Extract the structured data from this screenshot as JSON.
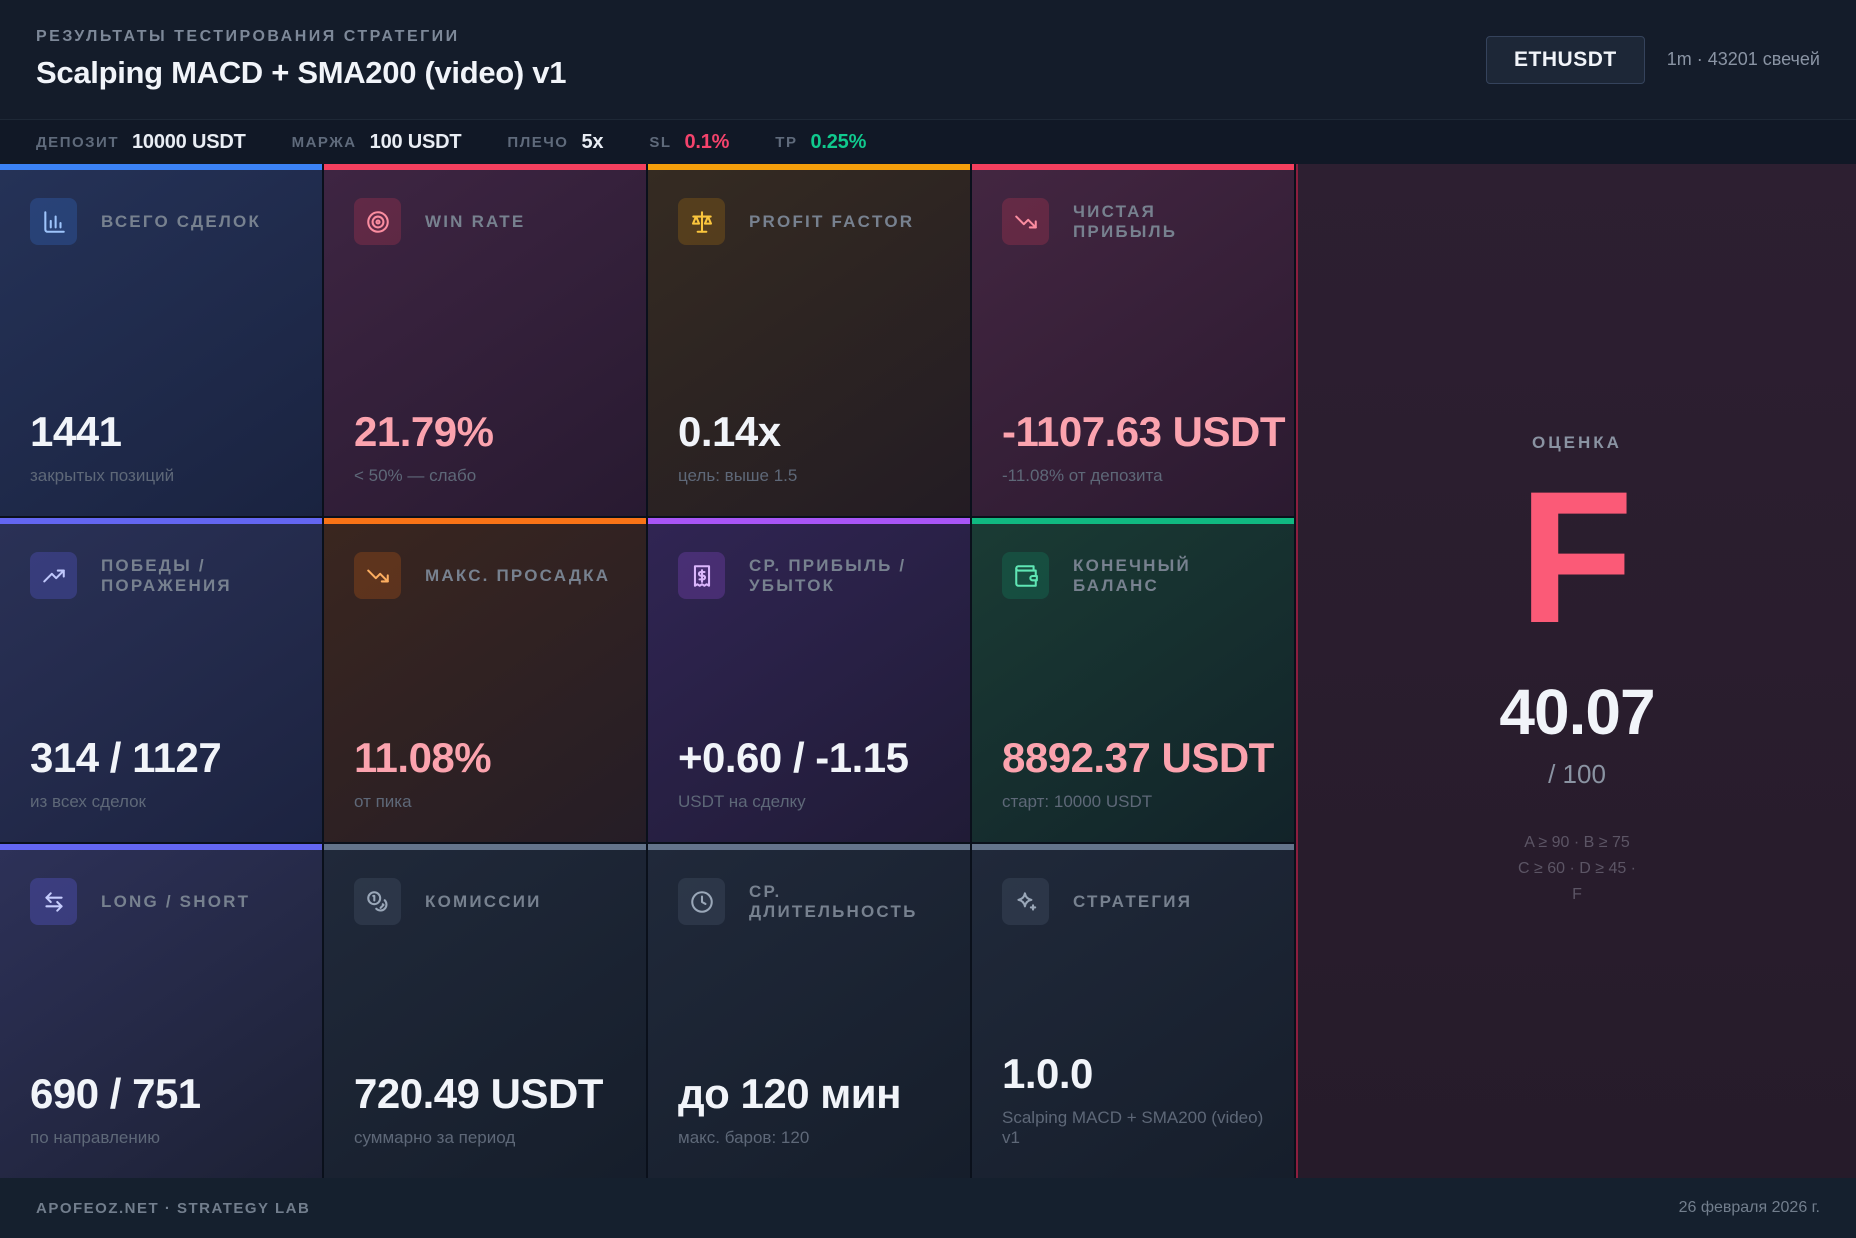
{
  "header": {
    "label": "РЕЗУЛЬТАТЫ ТЕСТИРОВАНИЯ СТРАТЕГИИ",
    "title": "Scalping MACD + SMA200 (video) v1",
    "symbol": "ETHUSDT",
    "timeframe": "1m · 43201 свечей"
  },
  "params": [
    {
      "label": "ДЕПОЗИТ",
      "value": "10000 USDT",
      "color": "#e9edf4"
    },
    {
      "label": "МАРЖА",
      "value": "100 USDT",
      "color": "#e9edf4"
    },
    {
      "label": "ПЛЕЧО",
      "value": "5x",
      "color": "#e9edf4"
    },
    {
      "label": "SL",
      "value": "0.1%",
      "color": "#f4436c"
    },
    {
      "label": "TP",
      "value": "0.25%",
      "color": "#10c98d"
    }
  ],
  "cards": [
    {
      "icon": "bar-chart-icon",
      "title": "ВСЕГО СДЕЛОК",
      "value": "1441",
      "sub": "закрытых позиций",
      "accent": "#3b82f6",
      "icon_bg": "rgba(59,130,246,0.22)",
      "icon_color": "#9dc4fb",
      "bg_from": "#253257",
      "bg_to": "#1a2340",
      "value_color": "#f1f4f9"
    },
    {
      "icon": "target-icon",
      "title": "WIN RATE",
      "value": "21.79%",
      "sub": "< 50% — слабо",
      "accent": "#f43f5e",
      "icon_bg": "rgba(244,63,94,0.20)",
      "icon_color": "#fb8da0",
      "bg_from": "#3e2542",
      "bg_to": "#281a31",
      "value_color": "#fba3ae"
    },
    {
      "icon": "scale-icon",
      "title": "PROFIT FACTOR",
      "value": "0.14x",
      "sub": "цель: выше 1.5",
      "accent": "#f59e0b",
      "icon_bg": "rgba(245,158,11,0.18)",
      "icon_color": "#fbc63d",
      "bg_from": "#352b22",
      "bg_to": "#231c23",
      "value_color": "#f1f4f9"
    },
    {
      "icon": "trending-down-icon",
      "title": "ЧИСТАЯ ПРИБЫЛЬ",
      "value": "-1107.63 USDT",
      "sub": "-11.08% от депозита",
      "accent": "#f43f5e",
      "icon_bg": "rgba(244,63,94,0.20)",
      "icon_color": "#fb8da0",
      "bg_from": "#432641",
      "bg_to": "#2b1a30",
      "value_color": "#fba3ae"
    },
    {
      "icon": "trending-up-icon",
      "title": "ПОБЕДЫ / ПОРАЖЕНИЯ",
      "value": "314 / 1127",
      "sub": "из всех сделок",
      "accent": "#6366f1",
      "icon_bg": "rgba(99,102,241,0.26)",
      "icon_color": "#c0c8fc",
      "bg_from": "#2a3156",
      "bg_to": "#1c2340",
      "value_color": "#f1f4f9"
    },
    {
      "icon": "trending-down-icon",
      "title": "МАКС. ПРОСАДКА",
      "value": "11.08%",
      "sub": "от пика",
      "accent": "#f97316",
      "icon_bg": "rgba(249,115,22,0.20)",
      "icon_color": "#fdae60",
      "bg_from": "#3a261f",
      "bg_to": "#251d26",
      "value_color": "#fba3ae"
    },
    {
      "icon": "receipt-dollar-icon",
      "title": "СР. ПРИБЫЛЬ / УБЫТОК",
      "value": "+0.60 / -1.15",
      "sub": "USDT на сделку",
      "accent": "#a855f7",
      "icon_bg": "rgba(168,85,247,0.22)",
      "icon_color": "#dbb6fc",
      "bg_from": "#302553",
      "bg_to": "#201b36",
      "value_color": "#f1f4f9"
    },
    {
      "icon": "wallet-icon",
      "title": "КОНЕЧНЫЙ БАЛАНС",
      "value": "8892.37 USDT",
      "sub": "старт: 10000 USDT",
      "accent": "#10b981",
      "icon_bg": "rgba(16,185,129,0.18)",
      "icon_color": "#5fe6b4",
      "bg_from": "#1a3b34",
      "bg_to": "#122329",
      "value_color": "#fba3ae"
    },
    {
      "icon": "swap-arrows-icon",
      "title": "LONG / SHORT",
      "value": "690 / 751",
      "sub": "по направлению",
      "accent": "#6366f1",
      "icon_bg": "rgba(99,102,241,0.28)",
      "icon_color": "#c6cdfd",
      "bg_from": "#2d3158",
      "bg_to": "#1d2135",
      "value_color": "#f1f4f9"
    },
    {
      "icon": "coins-icon",
      "title": "КОМИССИИ",
      "value": "720.49 USDT",
      "sub": "суммарно за период",
      "accent": "#64748b",
      "icon_bg": "rgba(100,116,139,0.20)",
      "icon_color": "#9aa7b8",
      "bg_from": "#20293a",
      "bg_to": "#161e2b",
      "value_color": "#f1f4f9"
    },
    {
      "icon": "clock-icon",
      "title": "СР. ДЛИТЕЛЬНОСТЬ",
      "value": "до 120 мин",
      "sub": "макс. баров: 120",
      "accent": "#64748b",
      "icon_bg": "rgba(100,116,139,0.20)",
      "icon_color": "#9aa7b8",
      "bg_from": "#20293a",
      "bg_to": "#161e2b",
      "value_color": "#f1f4f9"
    },
    {
      "icon": "sparkles-icon",
      "title": "СТРАТЕГИЯ",
      "value": "1.0.0",
      "sub": "Scalping MACD + SMA200 (video) v1",
      "accent": "#64748b",
      "icon_bg": "rgba(100,116,139,0.20)",
      "icon_color": "#9aa7b8",
      "bg_from": "#20293a",
      "bg_to": "#161e2b",
      "value_color": "#f1f4f9"
    }
  ],
  "rating": {
    "label": "ОЦЕНКА",
    "grade": "F",
    "grade_color": "#fb5a77",
    "score": "40.07",
    "denominator": "/ 100",
    "legend_lines": [
      "A ≥ 90 · B ≥ 75",
      "C ≥ 60 · D ≥ 45 ·",
      "F"
    ]
  },
  "footer": {
    "left": "APOFEOZ.NET · STRATEGY LAB",
    "right": "26 февраля 2026 г."
  }
}
